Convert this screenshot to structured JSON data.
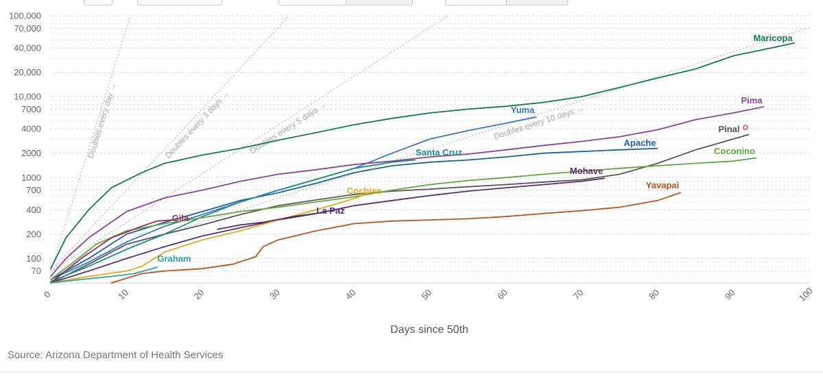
{
  "source": "Source: Arizona Department of Health Services",
  "chart_data": {
    "type": "line",
    "x_scale": "linear",
    "y_scale": "log",
    "xlabel": "Days since 50th",
    "xlim": [
      0,
      100
    ],
    "ylim": [
      50,
      100000
    ],
    "x_ticks": [
      0,
      10,
      20,
      30,
      40,
      50,
      60,
      70,
      80,
      90,
      100
    ],
    "x_tick_labels": [
      "0",
      "10",
      "20",
      "30",
      "40",
      "50",
      "60",
      "70",
      "80",
      "90",
      "100"
    ],
    "y_ticks": [
      70,
      100,
      200,
      400,
      700,
      1000,
      2000,
      4000,
      7000,
      10000,
      20000,
      40000,
      70000,
      100000
    ],
    "y_tick_labels": [
      "70",
      "100",
      "200",
      "400",
      "700",
      "1000",
      "2000",
      "4000",
      "7000",
      "10,000",
      "20,000",
      "40,000",
      "70,000",
      "100,000"
    ],
    "grid": true,
    "reference_lines": [
      {
        "name": "Doubles every day",
        "doubling_days": 1
      },
      {
        "name": "Doubles every 3 days",
        "doubling_days": 3
      },
      {
        "name": "Doubles every 5 days",
        "doubling_days": 5
      },
      {
        "name": "Doubles every 10 days",
        "doubling_days": 10
      }
    ],
    "series": [
      {
        "name": "Maricopa",
        "color": "#117a4a",
        "points": [
          [
            0,
            75
          ],
          [
            2,
            180
          ],
          [
            5,
            400
          ],
          [
            8,
            750
          ],
          [
            12,
            1150
          ],
          [
            15,
            1500
          ],
          [
            20,
            1900
          ],
          [
            25,
            2300
          ],
          [
            30,
            2900
          ],
          [
            35,
            3600
          ],
          [
            40,
            4500
          ],
          [
            45,
            5400
          ],
          [
            50,
            6300
          ],
          [
            55,
            7000
          ],
          [
            60,
            7600
          ],
          [
            65,
            8500
          ],
          [
            70,
            10000
          ],
          [
            75,
            13000
          ],
          [
            80,
            17000
          ],
          [
            85,
            22000
          ],
          [
            90,
            32000
          ],
          [
            95,
            40000
          ],
          [
            98,
            46000
          ]
        ]
      },
      {
        "name": "Yuma",
        "color": "#3a75c4",
        "points": [
          [
            0,
            55
          ],
          [
            5,
            90
          ],
          [
            10,
            160
          ],
          [
            15,
            250
          ],
          [
            20,
            350
          ],
          [
            25,
            500
          ],
          [
            30,
            700
          ],
          [
            35,
            950
          ],
          [
            40,
            1300
          ],
          [
            45,
            2000
          ],
          [
            50,
            3000
          ],
          [
            55,
            3800
          ],
          [
            60,
            4700
          ],
          [
            64,
            5600
          ]
        ]
      },
      {
        "name": "Pima",
        "color": "#8e3f9c",
        "points": [
          [
            0,
            60
          ],
          [
            2,
            100
          ],
          [
            5,
            180
          ],
          [
            10,
            380
          ],
          [
            15,
            560
          ],
          [
            20,
            700
          ],
          [
            25,
            900
          ],
          [
            30,
            1100
          ],
          [
            35,
            1250
          ],
          [
            40,
            1450
          ],
          [
            45,
            1600
          ],
          [
            50,
            1800
          ],
          [
            55,
            1950
          ],
          [
            60,
            2200
          ],
          [
            65,
            2500
          ],
          [
            70,
            2800
          ],
          [
            75,
            3200
          ],
          [
            80,
            3900
          ],
          [
            85,
            5200
          ],
          [
            90,
            6300
          ],
          [
            94,
            7500
          ]
        ]
      },
      {
        "name": "Pinal",
        "color": "#555555",
        "points": [
          [
            0,
            50
          ],
          [
            5,
            85
          ],
          [
            10,
            150
          ],
          [
            15,
            200
          ],
          [
            20,
            260
          ],
          [
            25,
            350
          ],
          [
            30,
            450
          ],
          [
            35,
            530
          ],
          [
            40,
            620
          ],
          [
            45,
            680
          ],
          [
            50,
            720
          ],
          [
            55,
            770
          ],
          [
            60,
            820
          ],
          [
            65,
            880
          ],
          [
            70,
            940
          ],
          [
            75,
            1100
          ],
          [
            80,
            1500
          ],
          [
            85,
            2200
          ],
          [
            90,
            3000
          ],
          [
            92,
            3400
          ]
        ]
      },
      {
        "name": "Apache",
        "color": "#1a5fa0",
        "points": [
          [
            0,
            55
          ],
          [
            5,
            100
          ],
          [
            10,
            200
          ],
          [
            15,
            280
          ],
          [
            20,
            380
          ],
          [
            25,
            520
          ],
          [
            30,
            650
          ],
          [
            35,
            850
          ],
          [
            40,
            1150
          ],
          [
            45,
            1400
          ],
          [
            50,
            1550
          ],
          [
            55,
            1650
          ],
          [
            60,
            1800
          ],
          [
            65,
            2000
          ],
          [
            70,
            2100
          ],
          [
            75,
            2200
          ],
          [
            80,
            2300
          ]
        ]
      },
      {
        "name": "Santa Cruz",
        "color": "#1a8f87",
        "points": [
          [
            0,
            52
          ],
          [
            5,
            80
          ],
          [
            10,
            130
          ],
          [
            15,
            200
          ],
          [
            20,
            330
          ],
          [
            25,
            500
          ],
          [
            30,
            700
          ],
          [
            35,
            950
          ],
          [
            40,
            1300
          ],
          [
            45,
            1550
          ],
          [
            48,
            1650
          ]
        ]
      },
      {
        "name": "Coconino",
        "color": "#5ca83e",
        "points": [
          [
            0,
            55
          ],
          [
            3,
            90
          ],
          [
            6,
            150
          ],
          [
            10,
            220
          ],
          [
            15,
            270
          ],
          [
            20,
            320
          ],
          [
            25,
            380
          ],
          [
            30,
            430
          ],
          [
            35,
            500
          ],
          [
            40,
            580
          ],
          [
            45,
            700
          ],
          [
            50,
            820
          ],
          [
            55,
            920
          ],
          [
            60,
            1000
          ],
          [
            65,
            1100
          ],
          [
            70,
            1200
          ],
          [
            75,
            1300
          ],
          [
            80,
            1400
          ],
          [
            85,
            1500
          ],
          [
            90,
            1600
          ],
          [
            93,
            1750
          ]
        ]
      },
      {
        "name": "Mohave",
        "color": "#5a2d6e",
        "points": [
          [
            0,
            50
          ],
          [
            5,
            70
          ],
          [
            10,
            100
          ],
          [
            15,
            140
          ],
          [
            20,
            190
          ],
          [
            25,
            240
          ],
          [
            30,
            300
          ],
          [
            35,
            360
          ],
          [
            40,
            450
          ],
          [
            45,
            520
          ],
          [
            50,
            600
          ],
          [
            55,
            680
          ],
          [
            60,
            750
          ],
          [
            65,
            820
          ],
          [
            70,
            900
          ],
          [
            73,
            980
          ]
        ]
      },
      {
        "name": "Yavapai",
        "color": "#b5561f",
        "points": [
          [
            8,
            50
          ],
          [
            12,
            65
          ],
          [
            15,
            70
          ],
          [
            20,
            75
          ],
          [
            24,
            85
          ],
          [
            27,
            105
          ],
          [
            28,
            140
          ],
          [
            30,
            170
          ],
          [
            35,
            220
          ],
          [
            40,
            270
          ],
          [
            45,
            290
          ],
          [
            50,
            300
          ],
          [
            55,
            310
          ],
          [
            60,
            330
          ],
          [
            65,
            360
          ],
          [
            70,
            390
          ],
          [
            75,
            430
          ],
          [
            80,
            520
          ],
          [
            83,
            650
          ]
        ]
      },
      {
        "name": "Cochise",
        "color": "#e8a81d",
        "points": [
          [
            0,
            50
          ],
          [
            5,
            60
          ],
          [
            10,
            70
          ],
          [
            12,
            80
          ],
          [
            15,
            120
          ],
          [
            20,
            170
          ],
          [
            25,
            220
          ],
          [
            30,
            300
          ],
          [
            35,
            400
          ],
          [
            40,
            550
          ],
          [
            42,
            650
          ]
        ]
      },
      {
        "name": "La Paz",
        "color": "#4b2a66",
        "points": [
          [
            22,
            230
          ],
          [
            25,
            260
          ],
          [
            28,
            280
          ],
          [
            32,
            330
          ],
          [
            35,
            360
          ]
        ]
      },
      {
        "name": "Gila",
        "color": "#a02c52",
        "points": [
          [
            0,
            50
          ],
          [
            4,
            100
          ],
          [
            8,
            180
          ],
          [
            12,
            250
          ],
          [
            14,
            290
          ],
          [
            16,
            300
          ]
        ]
      },
      {
        "name": "Graham",
        "color": "#2ba3a0",
        "points": [
          [
            0,
            50
          ],
          [
            4,
            55
          ],
          [
            8,
            60
          ],
          [
            11,
            65
          ],
          [
            14,
            78
          ]
        ]
      }
    ]
  }
}
